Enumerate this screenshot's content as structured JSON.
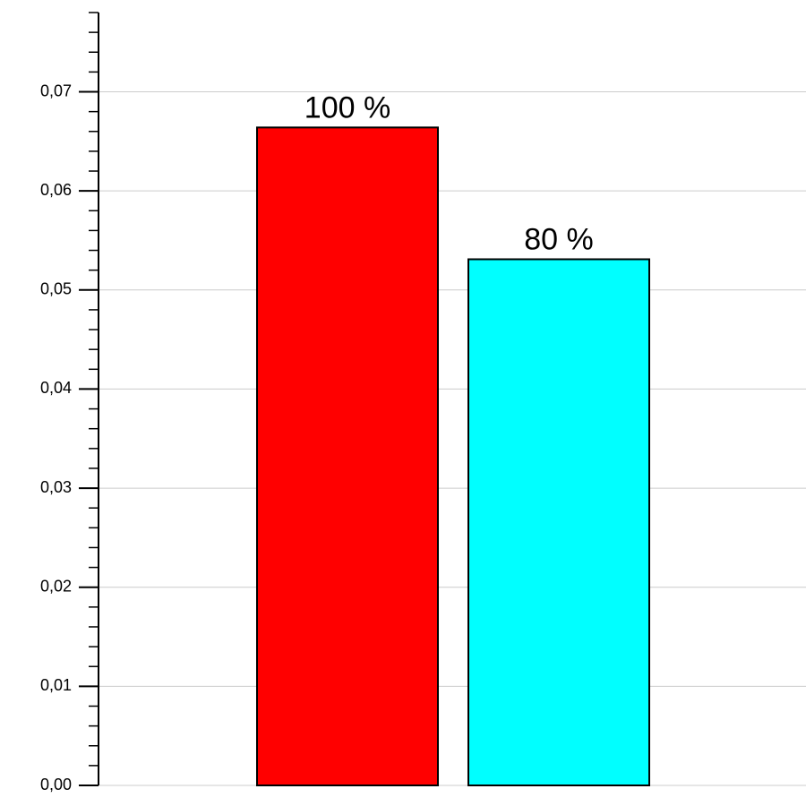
{
  "chart_data": {
    "type": "bar",
    "categories": [
      null,
      null
    ],
    "values": [
      0.0664,
      0.0531
    ],
    "colors": [
      "#ff0000",
      "#00ffff"
    ],
    "annotations": [
      "100 %",
      "80 %"
    ],
    "ylim": [
      0,
      0.078
    ],
    "yticks": [
      {
        "value": 0,
        "label": "0,00"
      },
      {
        "value": 0.01,
        "label": "0,01"
      },
      {
        "value": 0.02,
        "label": "0,02"
      },
      {
        "value": 0.03,
        "label": "0,03"
      },
      {
        "value": 0.04,
        "label": "0,04"
      },
      {
        "value": 0.05,
        "label": "0,05"
      },
      {
        "value": 0.06,
        "label": "0,06"
      },
      {
        "value": 0.07,
        "label": "0,07"
      }
    ],
    "minor_yticks": [
      0.002,
      0.004,
      0.006,
      0.008,
      0.012,
      0.014,
      0.016,
      0.018,
      0.022,
      0.024,
      0.026,
      0.028,
      0.032,
      0.034,
      0.036,
      0.038,
      0.042,
      0.044,
      0.046,
      0.048,
      0.052,
      0.054,
      0.056,
      0.058,
      0.062,
      0.064,
      0.066,
      0.068,
      0.072,
      0.074,
      0.076,
      0.078
    ],
    "grid": true
  }
}
